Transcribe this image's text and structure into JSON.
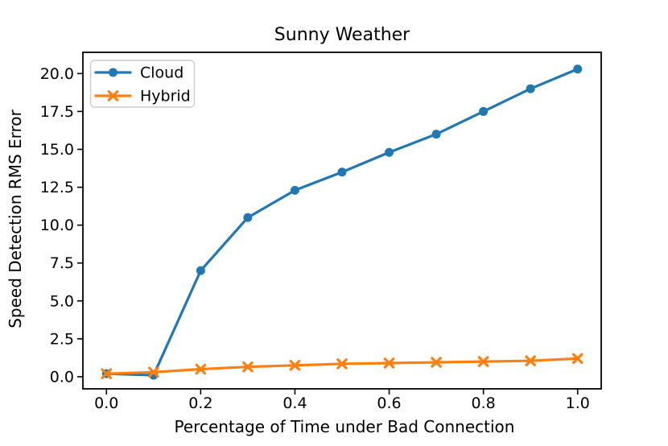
{
  "figure": {
    "background": "#ffffff",
    "spine_color": "#000000"
  },
  "chart_data": {
    "type": "line",
    "title": "Sunny Weather",
    "xlabel": "Percentage of Time under Bad Connection",
    "ylabel": "Speed Detection RMS Error",
    "x": [
      0.0,
      0.1,
      0.2,
      0.3,
      0.4,
      0.5,
      0.6,
      0.7,
      0.8,
      0.9,
      1.0
    ],
    "series": [
      {
        "name": "Cloud",
        "color": "#1f77b4",
        "marker": "circle",
        "values": [
          0.2,
          0.1,
          7.0,
          10.5,
          12.3,
          13.5,
          14.8,
          16.0,
          17.5,
          19.0,
          20.3
        ]
      },
      {
        "name": "Hybrid",
        "color": "#ff7f0e",
        "marker": "x",
        "values": [
          0.2,
          0.3,
          0.5,
          0.65,
          0.75,
          0.85,
          0.9,
          0.95,
          1.0,
          1.05,
          1.2
        ]
      }
    ],
    "xticks": {
      "values": [
        0.0,
        0.2,
        0.4,
        0.6,
        0.8,
        1.0
      ],
      "labels": [
        "0.0",
        "0.2",
        "0.4",
        "0.6",
        "0.8",
        "1.0"
      ]
    },
    "yticks": {
      "values": [
        0.0,
        2.5,
        5.0,
        7.5,
        10.0,
        12.5,
        15.0,
        17.5,
        20.0
      ],
      "labels": [
        "0.0",
        "2.5",
        "5.0",
        "7.5",
        "10.0",
        "12.5",
        "15.0",
        "17.5",
        "20.0"
      ]
    },
    "xlim": [
      -0.05,
      1.05
    ],
    "ylim": [
      -0.8,
      21.4
    ],
    "grid": false,
    "legend": {
      "position": "upper left",
      "entries": [
        "Cloud",
        "Hybrid"
      ]
    }
  }
}
